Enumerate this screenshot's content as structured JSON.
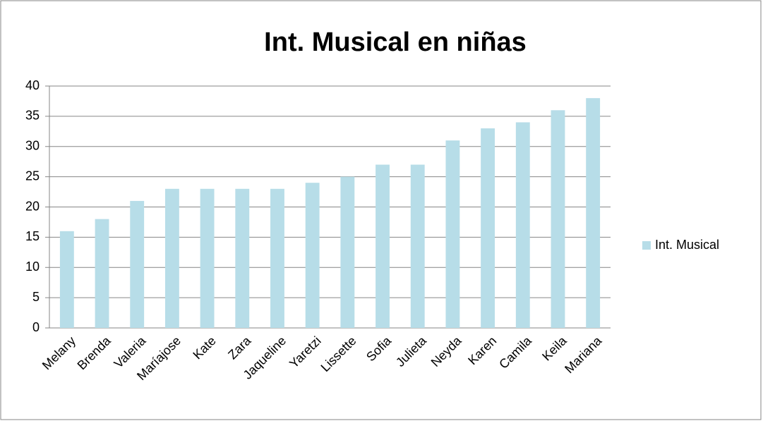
{
  "chart_data": {
    "type": "bar",
    "title": "Int. Musical en niñas",
    "categories": [
      "Melany",
      "Brenda",
      "Valeria",
      "Maríajose",
      "Kate",
      "Zara",
      "Jaqueline",
      "Yaretzi",
      "Lissette",
      "Sofia",
      "Julieta",
      "Neyda",
      "Karen",
      "Camila",
      "Keila",
      "Mariana"
    ],
    "series": [
      {
        "name": "Int. Musical",
        "color": "#b7dde8",
        "values": [
          16,
          18,
          21,
          23,
          23,
          23,
          23,
          24,
          25,
          27,
          27,
          31,
          33,
          34,
          36,
          38
        ]
      }
    ],
    "ylim": [
      0,
      40
    ],
    "yticks": [
      0,
      5,
      10,
      15,
      20,
      25,
      30,
      35,
      40
    ],
    "grid": true,
    "legend": "right"
  }
}
